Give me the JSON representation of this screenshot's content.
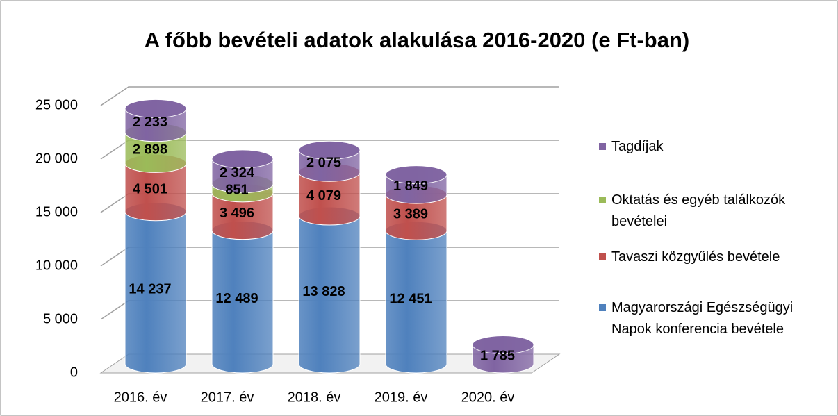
{
  "chart_data": {
    "type": "bar3d_stacked",
    "title": "A főbb bevételi adatok alakulása 2016-2020 (e Ft-ban)",
    "categories": [
      "2016. év",
      "2017. év",
      "2018. év",
      "2019. év",
      "2020. év"
    ],
    "series": [
      {
        "name": "Magyarországi Egészségügyi Napok konferencia bevétele",
        "color": "#4f81bd",
        "values": [
          14237,
          12489,
          13828,
          12451,
          null
        ],
        "value_labels": [
          "14 237",
          "12 489",
          "13 828",
          "12 451",
          null
        ]
      },
      {
        "name": "Tavaszi közgyűlés bevétele",
        "color": "#c0504d",
        "values": [
          4501,
          3496,
          4079,
          3389,
          null
        ],
        "value_labels": [
          "4 501",
          "3 496",
          "4 079",
          "3 389",
          null
        ]
      },
      {
        "name": "Oktatás és egyéb találkozók bevételei",
        "color": "#9bbb59",
        "values": [
          2898,
          851,
          null,
          null,
          null
        ],
        "value_labels": [
          "2 898",
          "851",
          null,
          null,
          null
        ]
      },
      {
        "name": "Tagdíjak",
        "color": "#8064a2",
        "values": [
          2233,
          2324,
          2075,
          1849,
          1785
        ],
        "value_labels": [
          "2 233",
          "2 324",
          "2 075",
          "1 849",
          "1 785"
        ]
      }
    ],
    "ylim": [
      0,
      25000
    ],
    "yticks": [
      0,
      {
        "value": 5000,
        "label": "5 000"
      },
      {
        "value": 10000,
        "label": "10 000"
      },
      {
        "value": 15000,
        "label": "15 000"
      },
      {
        "value": 20000,
        "label": "20 000"
      },
      {
        "value": 25000,
        "label": "25 000"
      }
    ],
    "grid": true,
    "legend": "right"
  }
}
